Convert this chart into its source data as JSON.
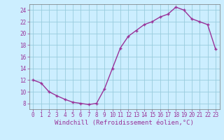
{
  "x": [
    0,
    1,
    2,
    3,
    4,
    5,
    6,
    7,
    8,
    9,
    10,
    11,
    12,
    13,
    14,
    15,
    16,
    17,
    18,
    19,
    20,
    21,
    22,
    23
  ],
  "y": [
    12,
    11.5,
    10,
    9.3,
    8.7,
    8.2,
    8.0,
    7.8,
    8.0,
    10.5,
    14.0,
    17.5,
    19.5,
    20.5,
    21.5,
    22.0,
    22.8,
    23.3,
    24.5,
    24.0,
    22.5,
    22.0,
    21.5,
    17.3
  ],
  "line_color": "#993399",
  "marker": "+",
  "marker_size": 3,
  "bg_color": "#cceeff",
  "grid_color": "#99ccdd",
  "xlabel": "Windchill (Refroidissement éolien,°C)",
  "xlabel_color": "#993399",
  "tick_color": "#993399",
  "xlim": [
    -0.5,
    23.5
  ],
  "ylim": [
    7.0,
    25.0
  ],
  "yticks": [
    8,
    10,
    12,
    14,
    16,
    18,
    20,
    22,
    24
  ],
  "xticks": [
    0,
    1,
    2,
    3,
    4,
    5,
    6,
    7,
    8,
    9,
    10,
    11,
    12,
    13,
    14,
    15,
    16,
    17,
    18,
    19,
    20,
    21,
    22,
    23
  ],
  "tick_label_fontsize": 5.5,
  "xlabel_fontsize": 6.5,
  "line_width": 1.0,
  "marker_edge_width": 1.0
}
